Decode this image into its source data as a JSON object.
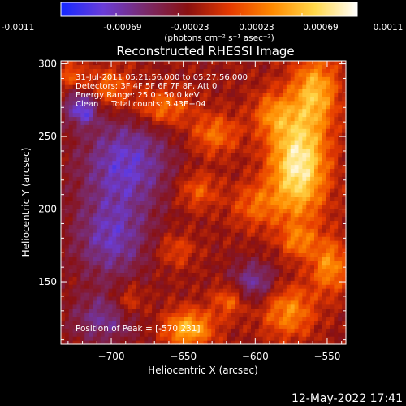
{
  "colorbar": {
    "ticks": [
      "-0.0011",
      "-0.00069",
      "-0.00023",
      "0.00023",
      "0.00069",
      "0.0011"
    ],
    "tick_values": [
      -0.0011,
      -0.00069,
      -0.00023,
      0.00023,
      0.00069,
      0.0011
    ],
    "range": [
      -0.0011,
      0.0011
    ],
    "stops": [
      "#1428ff",
      "#6a3cd8",
      "#7a2a6a",
      "#8a1010",
      "#e63a00",
      "#ff8a00",
      "#ffd84a",
      "#ffffff"
    ],
    "unit_label": "(photons cm⁻² s⁻¹ asec⁻²)"
  },
  "header": {
    "title": "Reconstructed RHESSI Image"
  },
  "info": {
    "line1": "31-Jul-2011 05:21:56.000 to 05:27:56.000",
    "line2": "Detectors: 3F 4F 5F 6F 7F 8F, Att 0",
    "line3": "Energy Range: 25.0 - 50.0 keV",
    "line4": "Clean     Total counts: 3.43E+04",
    "peak": "Position of Peak = [-570,231]"
  },
  "footer": {
    "timestamp": "12-May-2022 17:41"
  },
  "chart_data": {
    "type": "heatmap",
    "title": "Reconstructed RHESSI Image",
    "xlabel": "Heliocentric X (arcsec)",
    "ylabel": "Heliocentric Y (arcsec)",
    "xlim": [
      -735,
      -537
    ],
    "ylim": [
      107,
      302
    ],
    "xticks": [
      -700,
      -650,
      -600,
      -550
    ],
    "yticks": [
      150,
      200,
      250,
      300
    ],
    "xtick_labels": [
      "−700",
      "−650",
      "−600",
      "−550"
    ],
    "ytick_labels": [
      "150",
      "200",
      "250",
      "300"
    ],
    "colorbar_range": [
      -0.0011,
      0.0011
    ],
    "peak": [
      -570,
      231
    ],
    "grid": false,
    "blobs": [
      {
        "x": -570,
        "y": 231,
        "sx": 14,
        "sy": 26,
        "a": 0.0011
      },
      {
        "x": -558,
        "y": 282,
        "sx": 11,
        "sy": 17,
        "a": 0.0007
      },
      {
        "x": -588,
        "y": 266,
        "sx": 10,
        "sy": 11,
        "a": 0.00045
      },
      {
        "x": -628,
        "y": 252,
        "sx": 12,
        "sy": 10,
        "a": 0.00048
      },
      {
        "x": -664,
        "y": 270,
        "sx": 13,
        "sy": 9,
        "a": 0.00052
      },
      {
        "x": -640,
        "y": 213,
        "sx": 10,
        "sy": 9,
        "a": 0.0004
      },
      {
        "x": -600,
        "y": 203,
        "sx": 12,
        "sy": 11,
        "a": 0.0004
      },
      {
        "x": -570,
        "y": 178,
        "sx": 9,
        "sy": 8,
        "a": 0.00042
      },
      {
        "x": -548,
        "y": 161,
        "sx": 9,
        "sy": 13,
        "a": 0.0006
      },
      {
        "x": -618,
        "y": 138,
        "sx": 8,
        "sy": 8,
        "a": 0.00045
      },
      {
        "x": -577,
        "y": 130,
        "sx": 13,
        "sy": 13,
        "a": 0.00058
      },
      {
        "x": -646,
        "y": 118,
        "sx": 12,
        "sy": 9,
        "a": 0.00078
      },
      {
        "x": -688,
        "y": 137,
        "sx": 8,
        "sy": 8,
        "a": 0.00035
      },
      {
        "x": -701,
        "y": 283,
        "sx": 11,
        "sy": 10,
        "a": 0.00048
      },
      {
        "x": -727,
        "y": 292,
        "sx": 6,
        "sy": 6,
        "a": 0.0004
      },
      {
        "x": -655,
        "y": 172,
        "sx": 9,
        "sy": 8,
        "a": 0.0003
      },
      {
        "x": -690,
        "y": 232,
        "sx": 22,
        "sy": 22,
        "a": -0.00062
      },
      {
        "x": -700,
        "y": 180,
        "sx": 18,
        "sy": 20,
        "a": -0.00055
      },
      {
        "x": -705,
        "y": 125,
        "sx": 16,
        "sy": 12,
        "a": -0.00045
      },
      {
        "x": -601,
        "y": 150,
        "sx": 12,
        "sy": 10,
        "a": -0.0005
      },
      {
        "x": -720,
        "y": 270,
        "sx": 8,
        "sy": 8,
        "a": -0.0007
      }
    ]
  }
}
